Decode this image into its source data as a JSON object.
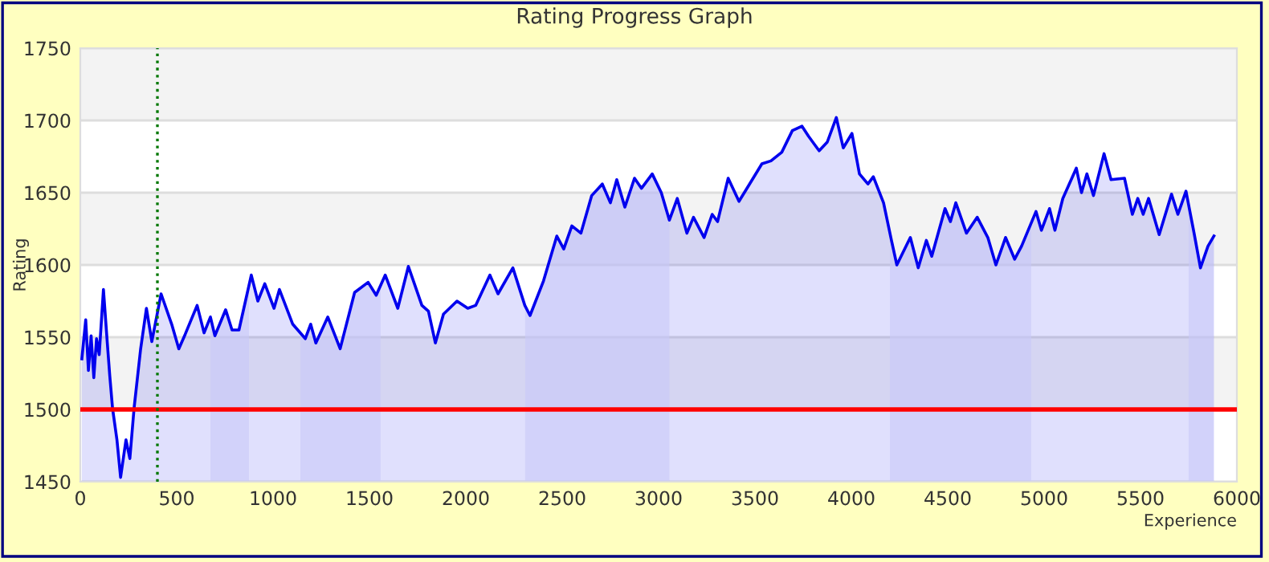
{
  "chart_data": {
    "type": "area",
    "title": "Rating Progress Graph",
    "xlabel": "Experience",
    "ylabel": "Rating",
    "xlim": [
      0,
      6000
    ],
    "xticks": [
      0,
      500,
      1000,
      1500,
      2000,
      2500,
      3000,
      3500,
      4000,
      4500,
      5000,
      5500,
      6000
    ],
    "ylim": [
      1450,
      1750
    ],
    "yticks": [
      1450,
      1500,
      1550,
      1600,
      1650,
      1700,
      1750
    ],
    "grid": "y",
    "legend": false,
    "series": [
      {
        "color": "#0000ee",
        "x": [
          8,
          28,
          42,
          56,
          70,
          84,
          98,
          120,
          140,
          153,
          167,
          190,
          209,
          237,
          257,
          279,
          313,
          343,
          371,
          419,
          474,
          511,
          544,
          606,
          642,
          675,
          698,
          754,
          787,
          823,
          887,
          921,
          957,
          1005,
          1033,
          1102,
          1167,
          1195,
          1222,
          1284,
          1348,
          1423,
          1493,
          1535,
          1582,
          1647,
          1702,
          1772,
          1806,
          1842,
          1884,
          1954,
          2010,
          2051,
          2125,
          2167,
          2244,
          2306,
          2333,
          2403,
          2472,
          2508,
          2550,
          2597,
          2653,
          2708,
          2750,
          2783,
          2825,
          2875,
          2911,
          2967,
          3014,
          3056,
          3097,
          3147,
          3181,
          3236,
          3278,
          3306,
          3361,
          3417,
          3472,
          3536,
          3583,
          3639,
          3694,
          3744,
          3778,
          3833,
          3875,
          3922,
          3958,
          4003,
          4042,
          4086,
          4114,
          4167,
          4208,
          4236,
          4306,
          4347,
          4389,
          4417,
          4486,
          4514,
          4542,
          4597,
          4653,
          4708,
          4750,
          4800,
          4847,
          4883,
          4958,
          4986,
          5028,
          5056,
          5097,
          5167,
          5194,
          5222,
          5256,
          5311,
          5347,
          5417,
          5458,
          5486,
          5514,
          5542,
          5597,
          5661,
          5694,
          5736,
          5778,
          5811,
          5850,
          5881
        ],
        "values": [
          1535,
          1562,
          1527,
          1551,
          1522,
          1549,
          1538,
          1583,
          1546,
          1523,
          1501,
          1479,
          1453,
          1479,
          1466,
          1501,
          1542,
          1570,
          1547,
          1580,
          1559,
          1542,
          1552,
          1572,
          1553,
          1564,
          1551,
          1569,
          1555,
          1555,
          1593,
          1575,
          1587,
          1570,
          1583,
          1559,
          1549,
          1559,
          1546,
          1564,
          1542,
          1581,
          1588,
          1579,
          1593,
          1570,
          1599,
          1572,
          1568,
          1546,
          1566,
          1575,
          1570,
          1572,
          1593,
          1580,
          1598,
          1572,
          1565,
          1589,
          1620,
          1611,
          1627,
          1622,
          1648,
          1656,
          1643,
          1659,
          1640,
          1660,
          1653,
          1663,
          1650,
          1631,
          1646,
          1622,
          1633,
          1619,
          1635,
          1630,
          1660,
          1644,
          1656,
          1670,
          1672,
          1678,
          1693,
          1696,
          1689,
          1679,
          1685,
          1702,
          1681,
          1691,
          1663,
          1656,
          1661,
          1643,
          1617,
          1600,
          1619,
          1598,
          1617,
          1606,
          1639,
          1630,
          1643,
          1622,
          1633,
          1619,
          1600,
          1619,
          1604,
          1613,
          1637,
          1624,
          1639,
          1624,
          1646,
          1667,
          1650,
          1663,
          1648,
          1677,
          1659,
          1660,
          1635,
          1646,
          1635,
          1646,
          1621,
          1649,
          1635,
          1651,
          1622,
          1598,
          1613,
          1620
        ]
      }
    ],
    "bands": [
      {
        "axis": "x",
        "from": 675,
        "to": 875,
        "color": "#c8c8f8"
      },
      {
        "axis": "x",
        "from": 1142,
        "to": 1558,
        "color": "#c8c8f8"
      },
      {
        "axis": "x",
        "from": 2308,
        "to": 3056,
        "color": "#c8c8f8"
      },
      {
        "axis": "x",
        "from": 4200,
        "to": 4933,
        "color": "#c8c8f8"
      },
      {
        "axis": "x",
        "from": 5750,
        "to": 5881,
        "color": "#c8c8f8"
      }
    ],
    "ref_lines": [
      {
        "axis": "y",
        "value": 1500,
        "color": "#ff0000",
        "line_style": "solid"
      },
      {
        "axis": "x",
        "value": 400,
        "color": "#007700",
        "line_style": "dotted"
      }
    ]
  }
}
